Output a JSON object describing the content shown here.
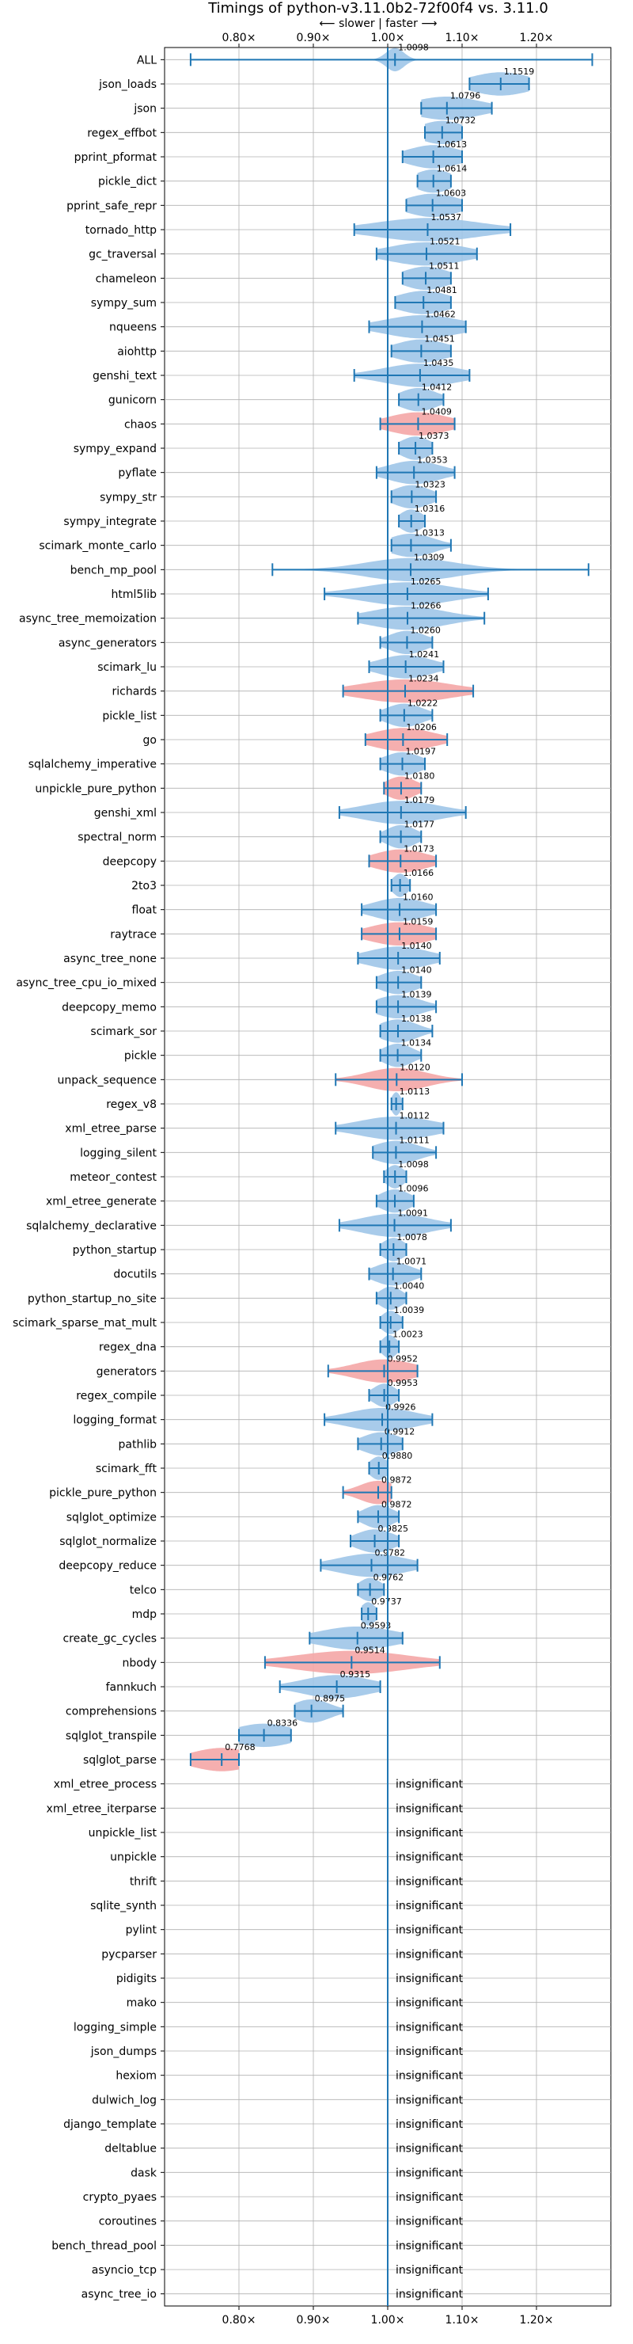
{
  "chart_data": {
    "type": "violin",
    "title": "Timings of python-v3.11.0b2-72f00f4 vs. 3.11.0",
    "subtitle": "⟵ slower | faster ⟶",
    "x_ticks": [
      "0.80×",
      "0.90×",
      "1.00×",
      "1.10×",
      "1.20×"
    ],
    "x_tick_values": [
      0.8,
      0.9,
      1.0,
      1.1,
      1.2
    ],
    "xlim": [
      0.7,
      1.3
    ],
    "reference_line": 1.0,
    "grid": true,
    "colors": {
      "faster": "#9fc5e8",
      "slower": "#f4a6a6",
      "line": "#1f77b4"
    },
    "insignificant_label": "insignificant",
    "benchmarks": [
      {
        "name": "ALL",
        "value": 1.0098,
        "label": "1.0098",
        "lo": 0.735,
        "hi": 1.275,
        "w": 0.012,
        "color": "faster"
      },
      {
        "name": "json_loads",
        "value": 1.1519,
        "label": "1.1519",
        "lo": 1.11,
        "hi": 1.19,
        "w": 0.04,
        "color": "faster"
      },
      {
        "name": "json",
        "value": 1.0796,
        "label": "1.0796",
        "lo": 1.045,
        "hi": 1.14,
        "w": 0.045,
        "color": "faster"
      },
      {
        "name": "regex_effbot",
        "value": 1.0732,
        "label": "1.0732",
        "lo": 1.05,
        "hi": 1.1,
        "w": 0.03,
        "color": "faster"
      },
      {
        "name": "pprint_pformat",
        "value": 1.0613,
        "label": "1.0613",
        "lo": 1.02,
        "hi": 1.1,
        "w": 0.035,
        "color": "faster"
      },
      {
        "name": "pickle_dict",
        "value": 1.0614,
        "label": "1.0614",
        "lo": 1.04,
        "hi": 1.085,
        "w": 0.025,
        "color": "faster"
      },
      {
        "name": "pprint_safe_repr",
        "value": 1.0603,
        "label": "1.0603",
        "lo": 1.025,
        "hi": 1.1,
        "w": 0.035,
        "color": "faster"
      },
      {
        "name": "tornado_http",
        "value": 1.0537,
        "label": "1.0537",
        "lo": 0.955,
        "hi": 1.165,
        "w": 0.07,
        "color": "faster"
      },
      {
        "name": "gc_traversal",
        "value": 1.0521,
        "label": "1.0521",
        "lo": 0.985,
        "hi": 1.12,
        "w": 0.05,
        "color": "faster"
      },
      {
        "name": "chameleon",
        "value": 1.0511,
        "label": "1.0511",
        "lo": 1.02,
        "hi": 1.085,
        "w": 0.03,
        "color": "faster"
      },
      {
        "name": "sympy_sum",
        "value": 1.0481,
        "label": "1.0481",
        "lo": 1.01,
        "hi": 1.085,
        "w": 0.035,
        "color": "faster"
      },
      {
        "name": "nqueens",
        "value": 1.0462,
        "label": "1.0462",
        "lo": 0.975,
        "hi": 1.105,
        "w": 0.05,
        "color": "faster"
      },
      {
        "name": "aiohttp",
        "value": 1.0451,
        "label": "1.0451",
        "lo": 1.005,
        "hi": 1.085,
        "w": 0.035,
        "color": "faster"
      },
      {
        "name": "genshi_text",
        "value": 1.0435,
        "label": "1.0435",
        "lo": 0.955,
        "hi": 1.11,
        "w": 0.05,
        "color": "faster"
      },
      {
        "name": "gunicorn",
        "value": 1.0412,
        "label": "1.0412",
        "lo": 1.015,
        "hi": 1.075,
        "w": 0.025,
        "color": "faster"
      },
      {
        "name": "chaos",
        "value": 1.0409,
        "label": "1.0409",
        "lo": 0.99,
        "hi": 1.09,
        "w": 0.04,
        "color": "slower"
      },
      {
        "name": "sympy_expand",
        "value": 1.0373,
        "label": "1.0373",
        "lo": 1.015,
        "hi": 1.06,
        "w": 0.02,
        "color": "faster"
      },
      {
        "name": "pyflate",
        "value": 1.0353,
        "label": "1.0353",
        "lo": 0.985,
        "hi": 1.09,
        "w": 0.035,
        "color": "faster"
      },
      {
        "name": "sympy_str",
        "value": 1.0323,
        "label": "1.0323",
        "lo": 1.005,
        "hi": 1.065,
        "w": 0.025,
        "color": "faster"
      },
      {
        "name": "sympy_integrate",
        "value": 1.0316,
        "label": "1.0316",
        "lo": 1.015,
        "hi": 1.05,
        "w": 0.015,
        "color": "faster"
      },
      {
        "name": "scimark_monte_carlo",
        "value": 1.0313,
        "label": "1.0313",
        "lo": 1.005,
        "hi": 1.085,
        "w": 0.03,
        "color": "faster"
      },
      {
        "name": "bench_mp_pool",
        "value": 1.0309,
        "label": "1.0309",
        "lo": 0.845,
        "hi": 1.27,
        "w": 0.06,
        "color": "faster"
      },
      {
        "name": "html5lib",
        "value": 1.0265,
        "label": "1.0265",
        "lo": 0.915,
        "hi": 1.135,
        "w": 0.06,
        "color": "faster"
      },
      {
        "name": "async_tree_memoization",
        "value": 1.0266,
        "label": "1.0266",
        "lo": 0.96,
        "hi": 1.13,
        "w": 0.05,
        "color": "faster"
      },
      {
        "name": "async_generators",
        "value": 1.026,
        "label": "1.0260",
        "lo": 0.99,
        "hi": 1.06,
        "w": 0.025,
        "color": "faster"
      },
      {
        "name": "scimark_lu",
        "value": 1.0241,
        "label": "1.0241",
        "lo": 0.975,
        "hi": 1.075,
        "w": 0.035,
        "color": "faster"
      },
      {
        "name": "richards",
        "value": 1.0234,
        "label": "1.0234",
        "lo": 0.94,
        "hi": 1.115,
        "w": 0.06,
        "color": "slower"
      },
      {
        "name": "pickle_list",
        "value": 1.0222,
        "label": "1.0222",
        "lo": 0.99,
        "hi": 1.06,
        "w": 0.025,
        "color": "faster"
      },
      {
        "name": "go",
        "value": 1.0206,
        "label": "1.0206",
        "lo": 0.97,
        "hi": 1.08,
        "w": 0.04,
        "color": "slower"
      },
      {
        "name": "sqlalchemy_imperative",
        "value": 1.0197,
        "label": "1.0197",
        "lo": 0.99,
        "hi": 1.05,
        "w": 0.025,
        "color": "faster"
      },
      {
        "name": "unpickle_pure_python",
        "value": 1.018,
        "label": "1.0180",
        "lo": 0.995,
        "hi": 1.045,
        "w": 0.02,
        "color": "slower"
      },
      {
        "name": "genshi_xml",
        "value": 1.0179,
        "label": "1.0179",
        "lo": 0.935,
        "hi": 1.105,
        "w": 0.05,
        "color": "faster"
      },
      {
        "name": "spectral_norm",
        "value": 1.0177,
        "label": "1.0177",
        "lo": 0.99,
        "hi": 1.045,
        "w": 0.02,
        "color": "faster"
      },
      {
        "name": "deepcopy",
        "value": 1.0173,
        "label": "1.0173",
        "lo": 0.975,
        "hi": 1.065,
        "w": 0.035,
        "color": "slower"
      },
      {
        "name": "2to3",
        "value": 1.0166,
        "label": "1.0166",
        "lo": 1.005,
        "hi": 1.03,
        "w": 0.01,
        "color": "faster"
      },
      {
        "name": "float",
        "value": 1.016,
        "label": "1.0160",
        "lo": 0.965,
        "hi": 1.065,
        "w": 0.035,
        "color": "faster"
      },
      {
        "name": "raytrace",
        "value": 1.0159,
        "label": "1.0159",
        "lo": 0.965,
        "hi": 1.065,
        "w": 0.04,
        "color": "slower"
      },
      {
        "name": "async_tree_none",
        "value": 1.014,
        "label": "1.0140",
        "lo": 0.96,
        "hi": 1.07,
        "w": 0.04,
        "color": "faster"
      },
      {
        "name": "async_tree_cpu_io_mixed",
        "value": 1.014,
        "label": "1.0140",
        "lo": 0.985,
        "hi": 1.045,
        "w": 0.025,
        "color": "faster"
      },
      {
        "name": "deepcopy_memo",
        "value": 1.0139,
        "label": "1.0139",
        "lo": 0.985,
        "hi": 1.065,
        "w": 0.03,
        "color": "faster"
      },
      {
        "name": "scimark_sor",
        "value": 1.0138,
        "label": "1.0138",
        "lo": 0.99,
        "hi": 1.06,
        "w": 0.025,
        "color": "faster"
      },
      {
        "name": "pickle",
        "value": 1.0134,
        "label": "1.0134",
        "lo": 0.99,
        "hi": 1.045,
        "w": 0.02,
        "color": "faster"
      },
      {
        "name": "unpack_sequence",
        "value": 1.012,
        "label": "1.0120",
        "lo": 0.93,
        "hi": 1.1,
        "w": 0.04,
        "color": "slower"
      },
      {
        "name": "regex_v8",
        "value": 1.0113,
        "label": "1.0113",
        "lo": 1.005,
        "hi": 1.02,
        "w": 0.006,
        "color": "faster"
      },
      {
        "name": "xml_etree_parse",
        "value": 1.0112,
        "label": "1.0112",
        "lo": 0.93,
        "hi": 1.075,
        "w": 0.05,
        "color": "faster"
      },
      {
        "name": "logging_silent",
        "value": 1.0111,
        "label": "1.0111",
        "lo": 0.98,
        "hi": 1.065,
        "w": 0.03,
        "color": "faster"
      },
      {
        "name": "meteor_contest",
        "value": 1.0098,
        "label": "1.0098",
        "lo": 0.995,
        "hi": 1.025,
        "w": 0.012,
        "color": "faster"
      },
      {
        "name": "xml_etree_generate",
        "value": 1.0096,
        "label": "1.0096",
        "lo": 0.985,
        "hi": 1.035,
        "w": 0.02,
        "color": "faster"
      },
      {
        "name": "sqlalchemy_declarative",
        "value": 1.0091,
        "label": "1.0091",
        "lo": 0.935,
        "hi": 1.085,
        "w": 0.045,
        "color": "faster"
      },
      {
        "name": "python_startup",
        "value": 1.0078,
        "label": "1.0078",
        "lo": 0.99,
        "hi": 1.025,
        "w": 0.015,
        "color": "faster"
      },
      {
        "name": "docutils",
        "value": 1.0071,
        "label": "1.0071",
        "lo": 0.975,
        "hi": 1.045,
        "w": 0.025,
        "color": "faster"
      },
      {
        "name": "python_startup_no_site",
        "value": 1.004,
        "label": "1.0040",
        "lo": 0.985,
        "hi": 1.025,
        "w": 0.015,
        "color": "faster"
      },
      {
        "name": "scimark_sparse_mat_mult",
        "value": 1.0039,
        "label": "1.0039",
        "lo": 0.99,
        "hi": 1.02,
        "w": 0.012,
        "color": "faster"
      },
      {
        "name": "regex_dna",
        "value": 1.0023,
        "label": "1.0023",
        "lo": 0.99,
        "hi": 1.015,
        "w": 0.01,
        "color": "faster"
      },
      {
        "name": "generators",
        "value": 0.9952,
        "label": "0.9952",
        "lo": 0.92,
        "hi": 1.04,
        "w": 0.04,
        "color": "slower"
      },
      {
        "name": "regex_compile",
        "value": 0.9953,
        "label": "0.9953",
        "lo": 0.975,
        "hi": 1.015,
        "w": 0.015,
        "color": "faster"
      },
      {
        "name": "logging_format",
        "value": 0.9926,
        "label": "0.9926",
        "lo": 0.915,
        "hi": 1.06,
        "w": 0.045,
        "color": "faster"
      },
      {
        "name": "pathlib",
        "value": 0.9912,
        "label": "0.9912",
        "lo": 0.96,
        "hi": 1.02,
        "w": 0.025,
        "color": "faster"
      },
      {
        "name": "scimark_fft",
        "value": 0.988,
        "label": "0.9880",
        "lo": 0.975,
        "hi": 1.0,
        "w": 0.012,
        "color": "faster"
      },
      {
        "name": "pickle_pure_python",
        "value": 0.9872,
        "label": "0.9872",
        "lo": 0.94,
        "hi": 1.005,
        "w": 0.025,
        "color": "slower"
      },
      {
        "name": "sqlglot_optimize",
        "value": 0.9872,
        "label": "0.9872",
        "lo": 0.96,
        "hi": 1.015,
        "w": 0.02,
        "color": "faster"
      },
      {
        "name": "sqlglot_normalize",
        "value": 0.9825,
        "label": "0.9825",
        "lo": 0.95,
        "hi": 1.015,
        "w": 0.025,
        "color": "faster"
      },
      {
        "name": "deepcopy_reduce",
        "value": 0.9782,
        "label": "0.9782",
        "lo": 0.91,
        "hi": 1.04,
        "w": 0.045,
        "color": "faster"
      },
      {
        "name": "telco",
        "value": 0.9762,
        "label": "0.9762",
        "lo": 0.96,
        "hi": 0.995,
        "w": 0.015,
        "color": "faster"
      },
      {
        "name": "mdp",
        "value": 0.9737,
        "label": "0.9737",
        "lo": 0.965,
        "hi": 0.985,
        "w": 0.01,
        "color": "faster"
      },
      {
        "name": "create_gc_cycles",
        "value": 0.9593,
        "label": "0.9593",
        "lo": 0.895,
        "hi": 1.02,
        "w": 0.05,
        "color": "faster"
      },
      {
        "name": "nbody",
        "value": 0.9514,
        "label": "0.9514",
        "lo": 0.835,
        "hi": 1.07,
        "w": 0.075,
        "color": "slower"
      },
      {
        "name": "fannkuch",
        "value": 0.9315,
        "label": "0.9315",
        "lo": 0.855,
        "hi": 0.99,
        "w": 0.045,
        "color": "faster"
      },
      {
        "name": "comprehensions",
        "value": 0.8975,
        "label": "0.8975",
        "lo": 0.875,
        "hi": 0.94,
        "w": 0.025,
        "color": "faster"
      },
      {
        "name": "sqlglot_transpile",
        "value": 0.8336,
        "label": "0.8336",
        "lo": 0.8,
        "hi": 0.87,
        "w": 0.04,
        "color": "faster"
      },
      {
        "name": "sqlglot_parse",
        "value": 0.7768,
        "label": "0.7768",
        "lo": 0.735,
        "hi": 0.8,
        "w": 0.04,
        "color": "slower"
      },
      {
        "name": "xml_etree_process",
        "insignificant": true
      },
      {
        "name": "xml_etree_iterparse",
        "insignificant": true
      },
      {
        "name": "unpickle_list",
        "insignificant": true
      },
      {
        "name": "unpickle",
        "insignificant": true
      },
      {
        "name": "thrift",
        "insignificant": true
      },
      {
        "name": "sqlite_synth",
        "insignificant": true
      },
      {
        "name": "pylint",
        "insignificant": true
      },
      {
        "name": "pycparser",
        "insignificant": true
      },
      {
        "name": "pidigits",
        "insignificant": true
      },
      {
        "name": "mako",
        "insignificant": true
      },
      {
        "name": "logging_simple",
        "insignificant": true
      },
      {
        "name": "json_dumps",
        "insignificant": true
      },
      {
        "name": "hexiom",
        "insignificant": true
      },
      {
        "name": "dulwich_log",
        "insignificant": true
      },
      {
        "name": "django_template",
        "insignificant": true
      },
      {
        "name": "deltablue",
        "insignificant": true
      },
      {
        "name": "dask",
        "insignificant": true
      },
      {
        "name": "crypto_pyaes",
        "insignificant": true
      },
      {
        "name": "coroutines",
        "insignificant": true
      },
      {
        "name": "bench_thread_pool",
        "insignificant": true
      },
      {
        "name": "asyncio_tcp",
        "insignificant": true
      },
      {
        "name": "async_tree_io",
        "insignificant": true
      }
    ]
  }
}
